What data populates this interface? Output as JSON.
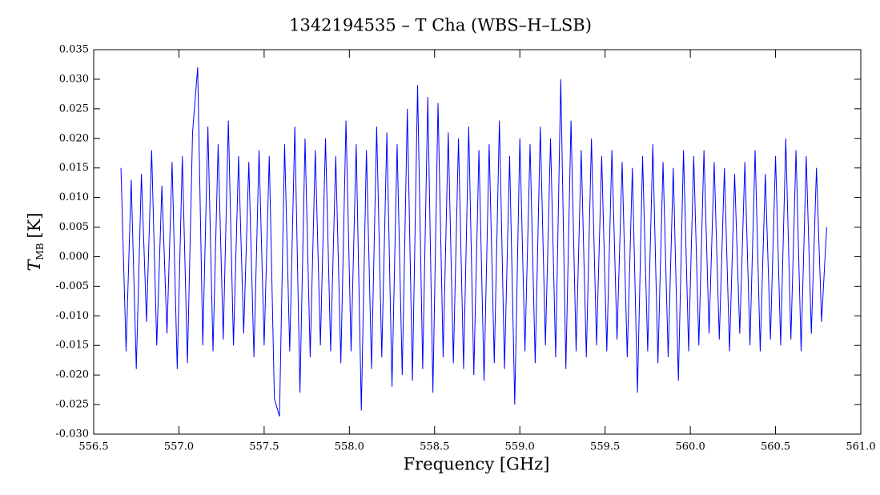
{
  "chart_data": {
    "type": "line",
    "title": "1342194535 – T Cha (WBS–H–LSB)",
    "xlabel": "Frequency [GHz]",
    "ylabel": {
      "symbol": "T",
      "subscript": "MB",
      "unit": "[K]"
    },
    "xlim": [
      556.5,
      561.0
    ],
    "xticks": [
      556.5,
      {
        "value": 557,
        "label": "557.0"
      },
      557.5,
      {
        "value": 558,
        "label": "558.0"
      },
      558.5,
      {
        "value": 559,
        "label": "559.0"
      },
      559.5,
      {
        "value": 560,
        "label": "560.0"
      },
      560.5,
      {
        "value": 561,
        "label": "561.0"
      }
    ],
    "ylim": [
      -0.03,
      0.035
    ],
    "yticks": [
      {
        "value": -0.03,
        "label": "-0.030"
      },
      -0.025,
      {
        "value": -0.02,
        "label": "-0.020"
      },
      -0.015,
      {
        "value": -0.01,
        "label": "-0.010"
      },
      -0.005,
      {
        "value": 0,
        "label": "0.000"
      },
      0.005,
      {
        "value": 0.01,
        "label": "0.010"
      },
      0.015,
      {
        "value": 0.02,
        "label": "0.020"
      },
      0.025,
      {
        "value": 0.03,
        "label": "0.030"
      },
      0.035
    ],
    "color": "#0000ff",
    "x": [
      556.66,
      556.69,
      556.72,
      556.75,
      556.78,
      556.81,
      556.84,
      556.87,
      556.9,
      556.93,
      556.96,
      556.99,
      557.02,
      557.05,
      557.08,
      557.11,
      557.14,
      557.17,
      557.2,
      557.23,
      557.26,
      557.29,
      557.32,
      557.35,
      557.38,
      557.41,
      557.44,
      557.47,
      557.5,
      557.53,
      557.56,
      557.59,
      557.62,
      557.65,
      557.68,
      557.71,
      557.74,
      557.77,
      557.8,
      557.83,
      557.86,
      557.89,
      557.92,
      557.95,
      557.98,
      558.01,
      558.04,
      558.07,
      558.1,
      558.13,
      558.16,
      558.19,
      558.22,
      558.25,
      558.28,
      558.31,
      558.34,
      558.37,
      558.4,
      558.43,
      558.46,
      558.49,
      558.52,
      558.55,
      558.58,
      558.61,
      558.64,
      558.67,
      558.7,
      558.73,
      558.76,
      558.79,
      558.82,
      558.85,
      558.88,
      558.91,
      558.94,
      558.97,
      559.0,
      559.03,
      559.06,
      559.09,
      559.12,
      559.15,
      559.18,
      559.21,
      559.24,
      559.27,
      559.3,
      559.33,
      559.36,
      559.39,
      559.42,
      559.45,
      559.48,
      559.51,
      559.54,
      559.57,
      559.6,
      559.63,
      559.66,
      559.69,
      559.72,
      559.75,
      559.78,
      559.81,
      559.84,
      559.87,
      559.9,
      559.93,
      559.96,
      559.99,
      560.02,
      560.05,
      560.08,
      560.11,
      560.14,
      560.17,
      560.2,
      560.23,
      560.26,
      560.29,
      560.32,
      560.35,
      560.38,
      560.41,
      560.44,
      560.47,
      560.5,
      560.53,
      560.56,
      560.59,
      560.62,
      560.65,
      560.68,
      560.71,
      560.74,
      560.77,
      560.8
    ],
    "values": [
      0.015,
      -0.016,
      0.013,
      -0.019,
      0.014,
      -0.011,
      0.018,
      -0.015,
      0.012,
      -0.013,
      0.016,
      -0.019,
      0.017,
      -0.018,
      0.021,
      0.032,
      -0.015,
      0.022,
      -0.016,
      0.019,
      -0.014,
      0.023,
      -0.015,
      0.017,
      -0.013,
      0.016,
      -0.017,
      0.018,
      -0.015,
      0.017,
      -0.024,
      -0.027,
      0.019,
      -0.016,
      0.022,
      -0.023,
      0.02,
      -0.017,
      0.018,
      -0.015,
      0.02,
      -0.016,
      0.017,
      -0.018,
      0.023,
      -0.016,
      0.019,
      -0.026,
      0.018,
      -0.019,
      0.022,
      -0.017,
      0.021,
      -0.022,
      0.019,
      -0.02,
      0.025,
      -0.021,
      0.029,
      -0.019,
      0.027,
      -0.023,
      0.026,
      -0.017,
      0.021,
      -0.018,
      0.02,
      -0.019,
      0.022,
      -0.02,
      0.018,
      -0.021,
      0.019,
      -0.018,
      0.023,
      -0.019,
      0.017,
      -0.025,
      0.02,
      -0.016,
      0.019,
      -0.018,
      0.022,
      -0.015,
      0.02,
      -0.017,
      0.03,
      -0.019,
      0.023,
      -0.016,
      0.018,
      -0.017,
      0.02,
      -0.015,
      0.017,
      -0.016,
      0.018,
      -0.014,
      0.016,
      -0.017,
      0.015,
      -0.023,
      0.017,
      -0.016,
      0.019,
      -0.018,
      0.016,
      -0.017,
      0.015,
      -0.021,
      0.018,
      -0.016,
      0.017,
      -0.015,
      0.018,
      -0.013,
      0.016,
      -0.014,
      0.015,
      -0.016,
      0.014,
      -0.013,
      0.016,
      -0.015,
      0.018,
      -0.016,
      0.014,
      -0.014,
      0.017,
      -0.015,
      0.02,
      -0.014,
      0.018,
      -0.016,
      0.017,
      -0.013,
      0.015,
      -0.011,
      0.005
    ]
  }
}
